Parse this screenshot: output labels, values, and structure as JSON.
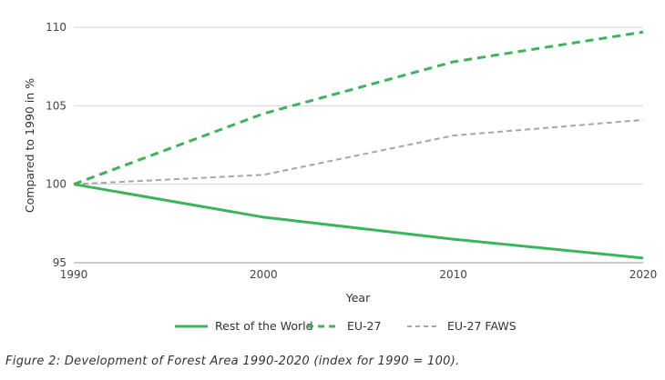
{
  "caption": "Figure 2: Development of Forest Area 1990-2020 (index for 1990 = 100).",
  "chart_data": {
    "type": "line",
    "title": "",
    "xlabel": "Year",
    "ylabel": "Compared to 1990 in %",
    "x": [
      1990,
      2000,
      2010,
      2020
    ],
    "xlim": [
      1990,
      2020
    ],
    "ylim": [
      95,
      110
    ],
    "yticks": [
      95,
      100,
      105,
      110
    ],
    "xticks": [
      1990,
      2000,
      2010,
      2020
    ],
    "grid": "horizontal",
    "legend_position": "bottom",
    "series": [
      {
        "name": "Rest of the World",
        "values": [
          100,
          97.9,
          96.5,
          95.3
        ],
        "color": "#3cb55a",
        "style": "solid"
      },
      {
        "name": "EU-27",
        "values": [
          100,
          104.5,
          107.8,
          109.7
        ],
        "color": "#3cb55a",
        "style": "dashed"
      },
      {
        "name": "EU-27 FAWS",
        "values": [
          100,
          100.6,
          103.1,
          104.1
        ],
        "color": "#a6a6a6",
        "style": "dashed"
      }
    ]
  }
}
